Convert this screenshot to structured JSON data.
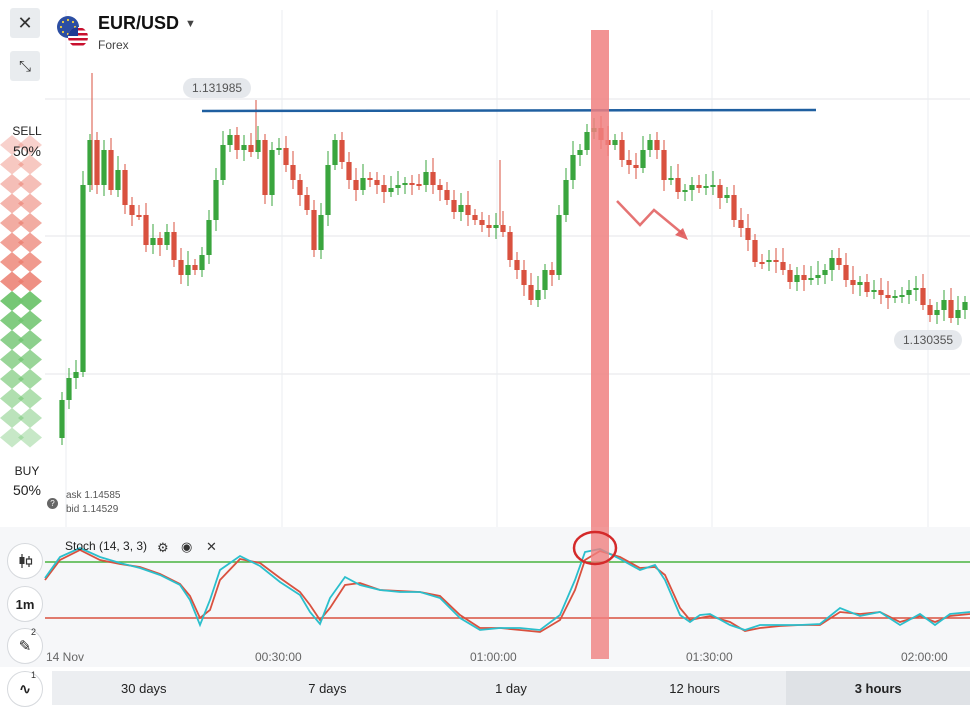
{
  "header": {
    "symbol": "EUR/USD",
    "category": "Forex",
    "close_icon": "close-icon",
    "collapse_icon": "collapse-icon",
    "flag_icon": "eu-us-flag-icon",
    "dropdown_icon": "chevron-down-icon"
  },
  "price_tags": {
    "high": "1.131985",
    "current": "1.130355"
  },
  "sentiment": {
    "sell_label": "SELL",
    "sell_pct": "50%",
    "buy_label": "BUY",
    "buy_pct": "50%"
  },
  "quote": {
    "ask": "ask 1.14585",
    "bid": "bid 1.14529",
    "help_icon": "question-icon"
  },
  "indicator": {
    "name": "Stoch (14, 3, 3)",
    "settings_icon": "gear-icon",
    "visibility_icon": "eye-icon",
    "remove_icon": "close-icon"
  },
  "side_tools": {
    "chart_type_icon": "candlestick-icon",
    "interval": "1m",
    "drawing_icon": "pencil-icon",
    "drawing_count": "2",
    "indicator_icon": "wave-icon",
    "indicator_count": "1"
  },
  "time_axis": [
    "14 Nov",
    "00:30:00",
    "01:00:00",
    "01:30:00",
    "02:00:00"
  ],
  "timeframes": [
    {
      "label": "30 days",
      "active": false
    },
    {
      "label": "7 days",
      "active": false
    },
    {
      "label": "1 day",
      "active": false
    },
    {
      "label": "12 hours",
      "active": false
    },
    {
      "label": "3 hours",
      "active": true
    }
  ],
  "colors": {
    "up": "#3aa53e",
    "down": "#d9513f",
    "trendline": "#1f5fa0",
    "highlight": "#f08080",
    "stoch_k": "#2bbfcc",
    "stoch_d": "#d9513f",
    "upper_level": "#48b340",
    "lower_level": "#d9513f"
  }
}
